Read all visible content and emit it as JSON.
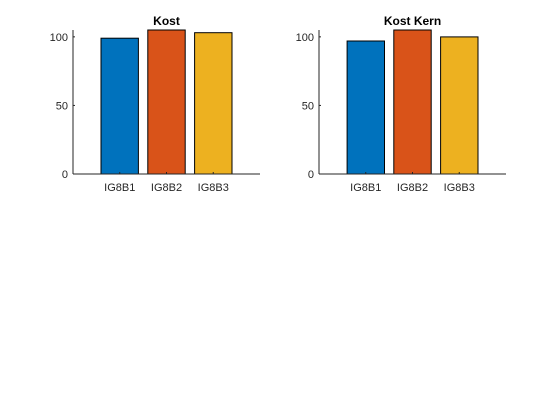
{
  "chart_data": [
    {
      "type": "bar",
      "title": "Kost",
      "categories": [
        "IG8B1",
        "IG8B2",
        "IG8B3"
      ],
      "values": [
        99,
        105,
        103
      ],
      "ylim": [
        0,
        105
      ],
      "yticks": [
        0,
        50,
        100
      ],
      "ytick_labels": [
        "0",
        "50",
        "100"
      ],
      "colors": [
        "#0072BD",
        "#D95319",
        "#EDB120"
      ],
      "grid": false
    },
    {
      "type": "bar",
      "title": "Kost Kern",
      "categories": [
        "IG8B1",
        "IG8B2",
        "IG8B3"
      ],
      "values": [
        97,
        105,
        100
      ],
      "ylim": [
        0,
        105
      ],
      "yticks": [
        0,
        50,
        100
      ],
      "ytick_labels": [
        "0",
        "50",
        "100"
      ],
      "colors": [
        "#0072BD",
        "#D95319",
        "#EDB120"
      ],
      "grid": false
    }
  ]
}
